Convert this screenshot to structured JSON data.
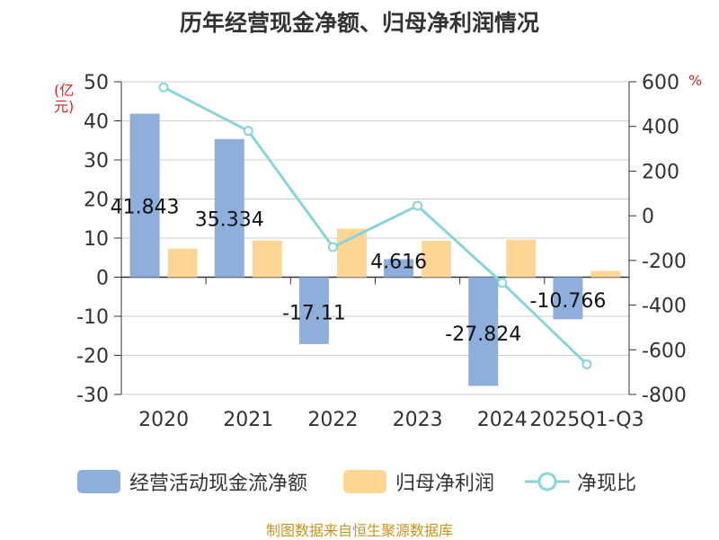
{
  "title": "历年经营现金净额、归母净利润情况",
  "source": "制图数据来自恒生聚源数据库",
  "colors": {
    "cashflow": "#8eafdc",
    "netprofit": "#fdd696",
    "ratio": "#88d4d8",
    "axis": "#333333",
    "grid": "#cccccc",
    "unit": "#e02020"
  },
  "chart_data": {
    "type": "bar",
    "title": "历年经营现金净额、归母净利润情况",
    "categories": [
      "2020",
      "2021",
      "2022",
      "2023",
      "2024",
      "2025Q1-Q3"
    ],
    "y_left": {
      "label": "(亿元)",
      "ylim": [
        -30,
        50
      ],
      "ticks": [
        50,
        40,
        30,
        20,
        10,
        0,
        -10,
        -20,
        -30
      ]
    },
    "y_right": {
      "label": "%",
      "ylim": [
        -800,
        600
      ],
      "ticks": [
        600,
        400,
        200,
        0,
        -200,
        -400,
        -600,
        -800
      ]
    },
    "series": [
      {
        "name": "经营活动现金流净额",
        "type": "bar",
        "axis": "left",
        "values": [
          41.843,
          35.334,
          -17.11,
          4.616,
          -27.824,
          -10.766
        ],
        "labels": [
          "41.843",
          "35.334",
          "-17.11",
          "4.616",
          "-27.824",
          "-10.766"
        ]
      },
      {
        "name": "归母净利润",
        "type": "bar",
        "axis": "left",
        "values": [
          7.3,
          9.4,
          12.4,
          9.3,
          9.6,
          1.6
        ]
      },
      {
        "name": "净现比",
        "type": "line",
        "axis": "right",
        "values": [
          575,
          380,
          -140,
          45,
          -300,
          -665
        ]
      }
    ]
  }
}
